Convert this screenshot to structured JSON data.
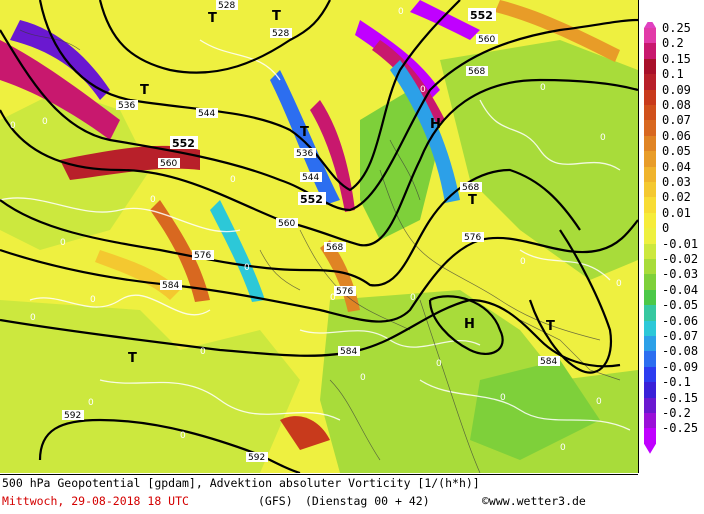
{
  "map": {
    "contour_labels": [
      "528",
      "536",
      "544",
      "552",
      "560",
      "568",
      "576",
      "584",
      "592"
    ],
    "centers": {
      "low": "T",
      "high": "H"
    },
    "zero_label": "0"
  },
  "legend": {
    "arrow_top_color": "#e040c0",
    "arrow_bottom_color": "#c000ff",
    "entries": [
      {
        "label": "0.25",
        "color": "#e23aa8"
      },
      {
        "label": "0.2",
        "color": "#c8186e"
      },
      {
        "label": "0.15",
        "color": "#a8102a"
      },
      {
        "label": "0.1",
        "color": "#b8202a"
      },
      {
        "label": "0.09",
        "color": "#c83a1c"
      },
      {
        "label": "0.08",
        "color": "#d0501c"
      },
      {
        "label": "0.07",
        "color": "#d86820"
      },
      {
        "label": "0.06",
        "color": "#e08424"
      },
      {
        "label": "0.05",
        "color": "#e89c28"
      },
      {
        "label": "0.04",
        "color": "#f0b42c"
      },
      {
        "label": "0.03",
        "color": "#f4c830"
      },
      {
        "label": "0.02",
        "color": "#f8dc34"
      },
      {
        "label": "0.01",
        "color": "#f6ec3a"
      },
      {
        "label": "0",
        "color": "#eef040"
      },
      {
        "label": "-0.01",
        "color": "#cce83e"
      },
      {
        "label": "-0.02",
        "color": "#a8dc3a"
      },
      {
        "label": "-0.03",
        "color": "#7ed03a"
      },
      {
        "label": "-0.04",
        "color": "#4cc848"
      },
      {
        "label": "-0.05",
        "color": "#36c8a0"
      },
      {
        "label": "-0.06",
        "color": "#2cc8d8"
      },
      {
        "label": "-0.07",
        "color": "#2ca0e8"
      },
      {
        "label": "-0.08",
        "color": "#2c6ef0"
      },
      {
        "label": "-0.09",
        "color": "#2c3cf0"
      },
      {
        "label": "-0.1",
        "color": "#3a20d8"
      },
      {
        "label": "-0.15",
        "color": "#6a18d0"
      },
      {
        "label": "-0.2",
        "color": "#9a10d8"
      },
      {
        "label": "-0.25",
        "color": "#c000ff"
      }
    ]
  },
  "footer": {
    "title": "500 hPa Geopotential [gpdam], Advektion absoluter Vorticity [1/(h*h)]",
    "date": "Mittwoch, 29-08-2018  18 UTC",
    "model": "(GFS)",
    "run": "(Dienstag 00 + 42)",
    "copyright": "©www.wetter3.de"
  }
}
